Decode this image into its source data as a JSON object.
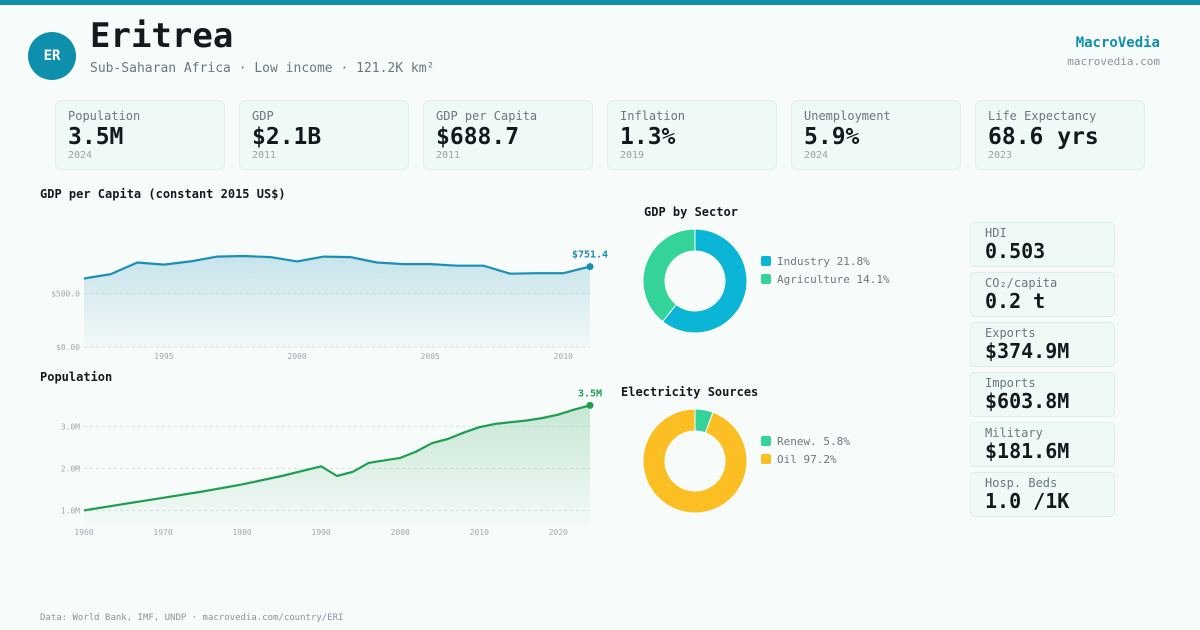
{
  "header": {
    "badge": "ER",
    "title": "Eritrea",
    "subtitle": "Sub-Saharan Africa · Low income · 121.2K km²",
    "brand": "MacroVedia",
    "brand_url": "macrovedia.com"
  },
  "kpis": [
    {
      "label": "Population",
      "value": "3.5M",
      "year": "2024"
    },
    {
      "label": "GDP",
      "value": "$2.1B",
      "year": "2011"
    },
    {
      "label": "GDP per Capita",
      "value": "$688.7",
      "year": "2011"
    },
    {
      "label": "Inflation",
      "value": "1.3%",
      "year": "2019"
    },
    {
      "label": "Unemployment",
      "value": "5.9%",
      "year": "2024"
    },
    {
      "label": "Life Expectancy",
      "value": "68.6 yrs",
      "year": "2023"
    }
  ],
  "side_stats": [
    {
      "label": "HDI",
      "value": "0.503"
    },
    {
      "label": "CO₂/capita",
      "value": "0.2 t"
    },
    {
      "label": "Exports",
      "value": "$374.9M"
    },
    {
      "label": "Imports",
      "value": "$603.8M"
    },
    {
      "label": "Military",
      "value": "$181.6M"
    },
    {
      "label": "Hosp. Beds",
      "value": "1.0 /1K"
    }
  ],
  "colors": {
    "accent": "#0e8fab",
    "gdp_line": "#1a8fb5",
    "pop_line": "#1e9e4f",
    "industry": "#0bb5d6",
    "agriculture": "#34d399",
    "renewables": "#34d399",
    "oil": "#fbbf24"
  },
  "chart_data": [
    {
      "type": "area",
      "title": "GDP per Capita (constant 2015 US$)",
      "x": [
        1992,
        1993,
        1994,
        1995,
        1996,
        1997,
        1998,
        1999,
        2000,
        2001,
        2002,
        2003,
        2004,
        2005,
        2006,
        2007,
        2008,
        2009,
        2010,
        2011
      ],
      "values": [
        640,
        680,
        790,
        770,
        800,
        845,
        850,
        840,
        800,
        845,
        840,
        790,
        775,
        775,
        760,
        760,
        685,
        690,
        690,
        751.4
      ],
      "ylim": [
        0,
        1000
      ],
      "y_ticks": [
        0,
        500
      ],
      "y_tick_labels": [
        "$0.00",
        "$500.0"
      ],
      "x_ticks": [
        1995,
        2000,
        2005,
        2010
      ],
      "x_tick_labels": [
        "1995",
        "2000",
        "2005",
        "2010"
      ],
      "end_label": "$751.4"
    },
    {
      "type": "area",
      "title": "Population",
      "x": [
        1960,
        1965,
        1970,
        1975,
        1980,
        1985,
        1990,
        1992,
        1994,
        1996,
        2000,
        2002,
        2004,
        2006,
        2008,
        2010,
        2012,
        2014,
        2016,
        2018,
        2020,
        2022,
        2024
      ],
      "values": [
        1.0,
        1.15,
        1.3,
        1.45,
        1.62,
        1.82,
        2.05,
        1.82,
        1.92,
        2.13,
        2.25,
        2.4,
        2.6,
        2.7,
        2.85,
        2.98,
        3.06,
        3.1,
        3.14,
        3.2,
        3.28,
        3.4,
        3.5
      ],
      "ylim": [
        0.7,
        3.7
      ],
      "y_ticks": [
        1,
        2,
        3
      ],
      "y_tick_labels": [
        "1.0M",
        "2.0M",
        "3.0M"
      ],
      "x_ticks": [
        1960,
        1970,
        1980,
        1990,
        2000,
        2010,
        2020
      ],
      "x_tick_labels": [
        "1960",
        "1970",
        "1980",
        "1990",
        "2000",
        "2010",
        "2020"
      ],
      "end_label": "3.5M"
    },
    {
      "type": "pie",
      "title": "GDP by Sector",
      "categories": [
        "Industry",
        "Agriculture"
      ],
      "values": [
        21.8,
        14.1
      ],
      "legend_labels": [
        "Industry 21.8%",
        "Agriculture 14.1%"
      ]
    },
    {
      "type": "pie",
      "title": "Electricity Sources",
      "categories": [
        "Renew.",
        "Oil"
      ],
      "values": [
        5.8,
        97.2
      ],
      "legend_labels": [
        "Renew. 5.8%",
        "Oil 97.2%"
      ]
    }
  ],
  "footer": "Data: World Bank, IMF, UNDP · macrovedia.com/country/ERI"
}
